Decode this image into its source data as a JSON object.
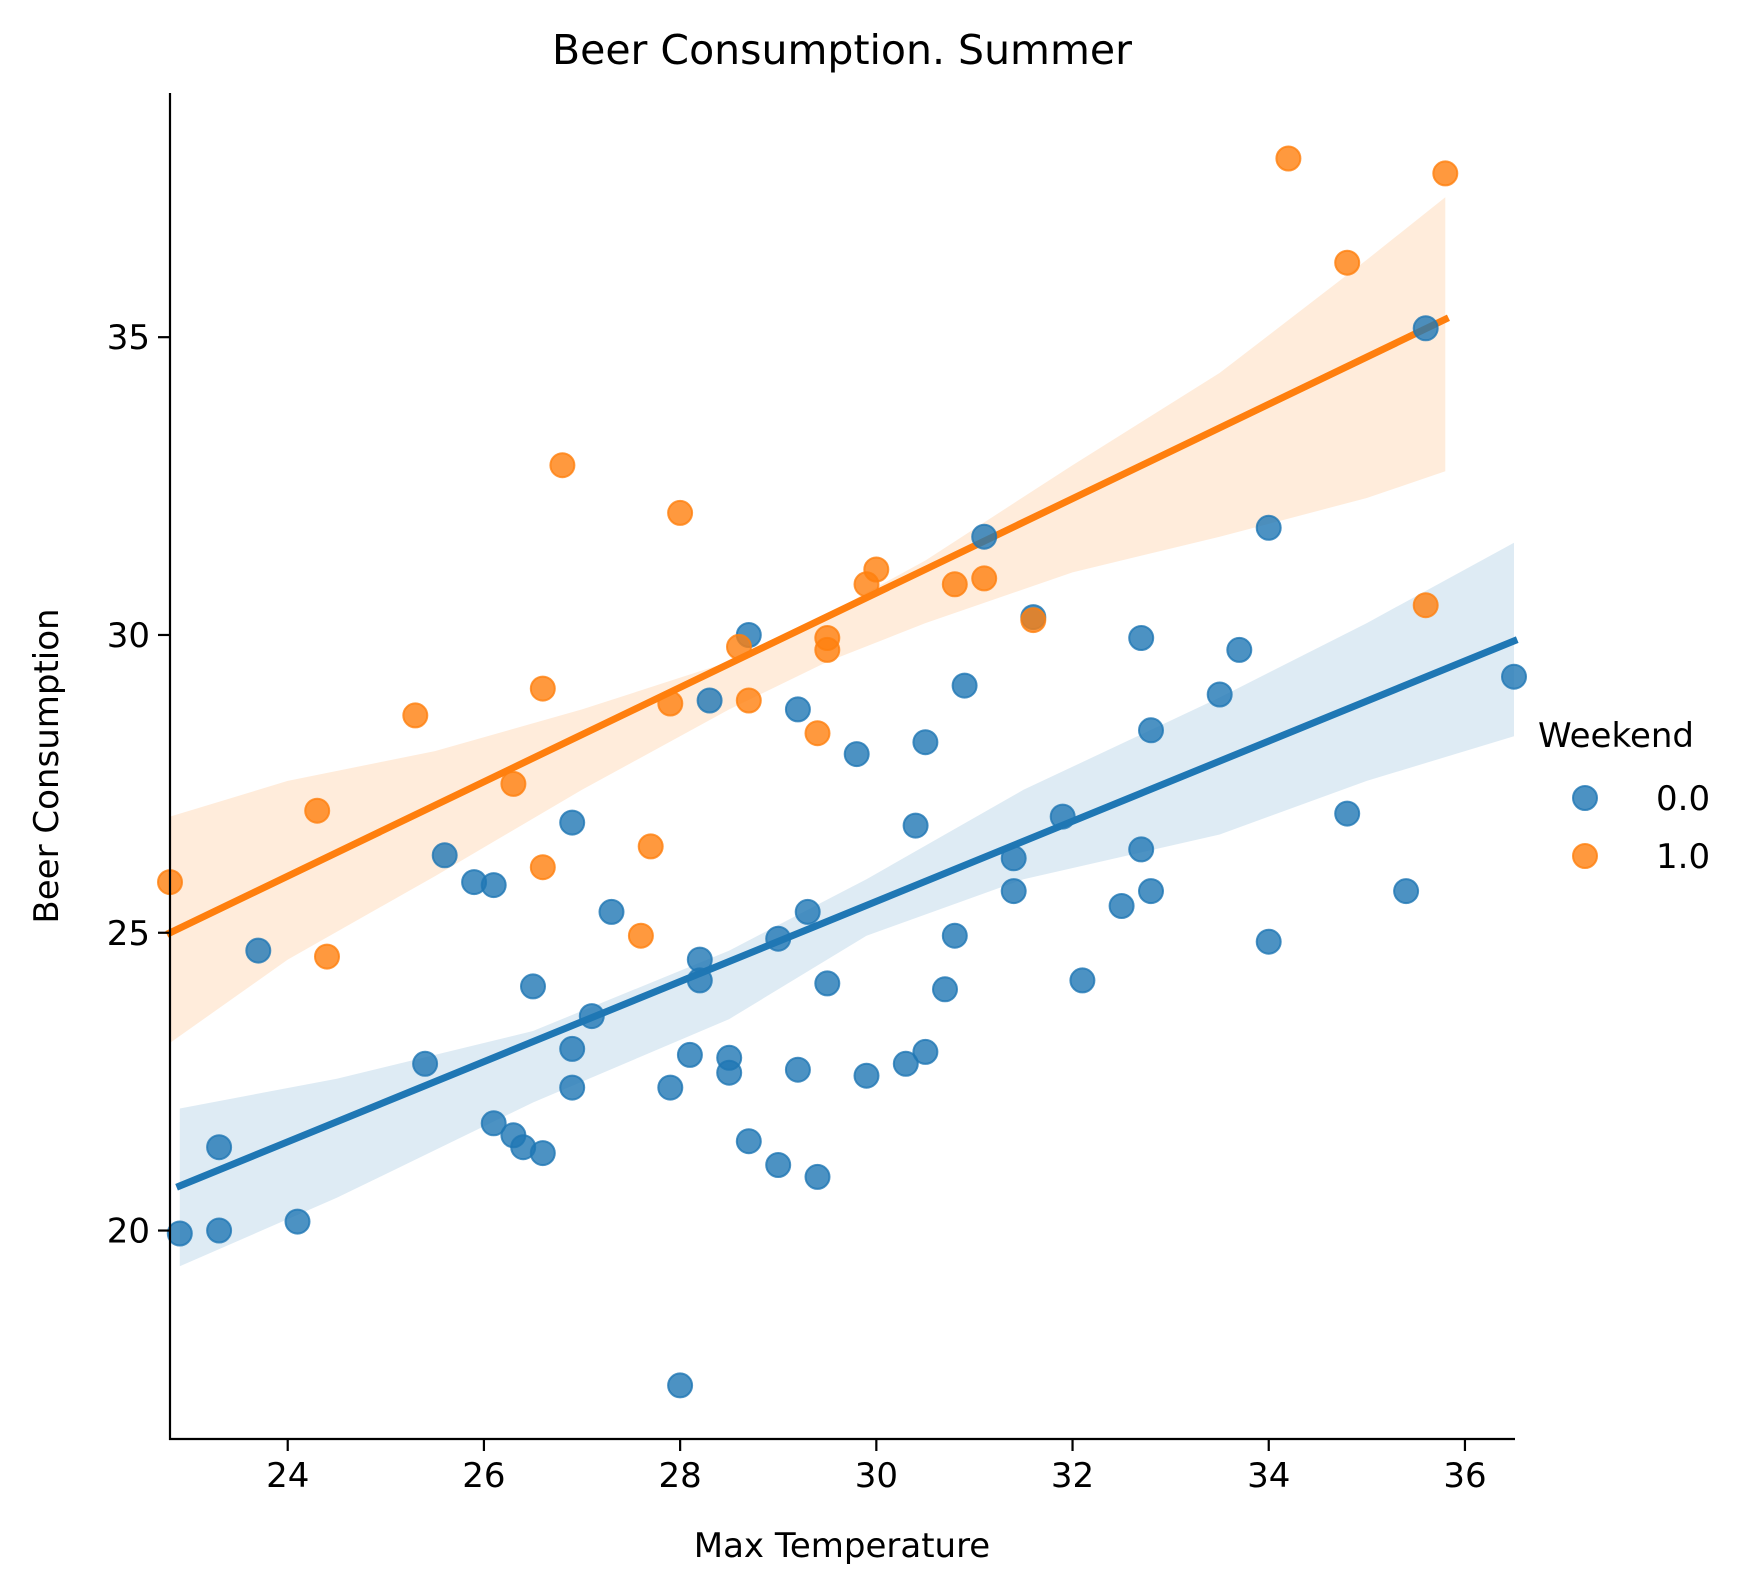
{
  "chart_data": {
    "type": "scatter",
    "title": "Beer Consumption. Summer",
    "xlabel": "Max Temperature",
    "ylabel": "Beer Consumption",
    "xlim": [
      22.8,
      36.5
    ],
    "ylim": [
      16.5,
      39.1
    ],
    "xticks": [
      24,
      26,
      28,
      30,
      32,
      34,
      36
    ],
    "yticks": [
      20,
      25,
      30,
      35
    ],
    "grid": false,
    "legend": {
      "title": "Weekend",
      "placement": "center-right outside"
    },
    "series": [
      {
        "name": "0.0",
        "color": "#1f77b4",
        "points": [
          [
            22.9,
            19.95
          ],
          [
            23.3,
            20.0
          ],
          [
            23.3,
            21.4
          ],
          [
            23.7,
            24.7
          ],
          [
            24.1,
            20.15
          ],
          [
            25.4,
            22.8
          ],
          [
            25.6,
            26.3
          ],
          [
            25.9,
            25.85
          ],
          [
            26.1,
            25.8
          ],
          [
            26.1,
            21.8
          ],
          [
            26.3,
            21.6
          ],
          [
            26.4,
            21.4
          ],
          [
            26.5,
            24.1
          ],
          [
            26.6,
            21.3
          ],
          [
            26.9,
            26.85
          ],
          [
            26.9,
            23.05
          ],
          [
            26.9,
            22.4
          ],
          [
            27.1,
            23.6
          ],
          [
            27.3,
            25.35
          ],
          [
            27.9,
            22.4
          ],
          [
            28.0,
            17.4
          ],
          [
            28.1,
            22.95
          ],
          [
            28.2,
            24.55
          ],
          [
            28.2,
            24.2
          ],
          [
            28.3,
            28.9
          ],
          [
            28.5,
            22.9
          ],
          [
            28.5,
            22.65
          ],
          [
            28.7,
            30.0
          ],
          [
            28.7,
            21.5
          ],
          [
            29.0,
            24.9
          ],
          [
            29.0,
            21.1
          ],
          [
            29.2,
            28.75
          ],
          [
            29.2,
            22.7
          ],
          [
            29.3,
            25.35
          ],
          [
            29.4,
            20.9
          ],
          [
            29.5,
            24.15
          ],
          [
            29.8,
            28.0
          ],
          [
            29.9,
            22.6
          ],
          [
            30.3,
            22.8
          ],
          [
            30.4,
            26.8
          ],
          [
            30.5,
            28.2
          ],
          [
            30.5,
            23.0
          ],
          [
            30.7,
            24.05
          ],
          [
            30.8,
            24.95
          ],
          [
            30.9,
            29.15
          ],
          [
            31.1,
            31.65
          ],
          [
            31.4,
            26.25
          ],
          [
            31.4,
            25.7
          ],
          [
            31.6,
            30.3
          ],
          [
            31.9,
            26.95
          ],
          [
            32.1,
            24.2
          ],
          [
            32.5,
            25.45
          ],
          [
            32.7,
            29.95
          ],
          [
            32.7,
            26.4
          ],
          [
            32.8,
            28.4
          ],
          [
            32.8,
            25.7
          ],
          [
            33.5,
            29.0
          ],
          [
            33.7,
            29.75
          ],
          [
            34.0,
            31.8
          ],
          [
            34.0,
            24.85
          ],
          [
            34.8,
            27.0
          ],
          [
            35.4,
            25.7
          ],
          [
            35.6,
            35.15
          ],
          [
            36.5,
            29.3
          ]
        ],
        "fit": {
          "x": [
            22.9,
            36.5
          ],
          "y": [
            20.75,
            29.9
          ]
        },
        "ci_band": {
          "x": [
            22.9,
            24.5,
            26.5,
            28.5,
            29.9,
            31.5,
            33.5,
            35.0,
            36.5
          ],
          "upper": [
            22.05,
            22.55,
            23.35,
            24.7,
            25.9,
            27.4,
            28.95,
            30.2,
            31.55
          ],
          "lower": [
            19.4,
            20.55,
            22.15,
            23.55,
            24.95,
            25.9,
            26.65,
            27.55,
            28.3
          ]
        }
      },
      {
        "name": "1.0",
        "color": "#ff7f0e",
        "points": [
          [
            22.8,
            25.85
          ],
          [
            24.3,
            27.05
          ],
          [
            24.4,
            24.6
          ],
          [
            25.3,
            28.65
          ],
          [
            26.3,
            27.5
          ],
          [
            26.6,
            29.1
          ],
          [
            26.6,
            26.1
          ],
          [
            26.8,
            32.85
          ],
          [
            27.6,
            24.95
          ],
          [
            27.7,
            26.45
          ],
          [
            27.9,
            28.85
          ],
          [
            28.0,
            32.05
          ],
          [
            28.6,
            29.8
          ],
          [
            28.7,
            28.9
          ],
          [
            29.4,
            28.35
          ],
          [
            29.5,
            29.95
          ],
          [
            29.5,
            29.75
          ],
          [
            29.9,
            30.85
          ],
          [
            30.0,
            31.1
          ],
          [
            30.8,
            30.85
          ],
          [
            31.1,
            30.95
          ],
          [
            31.6,
            30.25
          ],
          [
            34.2,
            38.0
          ],
          [
            34.8,
            36.25
          ],
          [
            35.6,
            30.5
          ],
          [
            35.8,
            37.75
          ]
        ],
        "fit": {
          "x": [
            22.8,
            35.8
          ],
          "y": [
            25.0,
            35.3
          ]
        },
        "ci_band": {
          "x": [
            22.8,
            24.0,
            25.5,
            27.0,
            28.5,
            29.5,
            30.5,
            32.0,
            33.5,
            35.0,
            35.8
          ],
          "upper": [
            26.95,
            27.55,
            28.05,
            28.75,
            29.55,
            30.35,
            31.25,
            32.85,
            34.4,
            36.3,
            37.35
          ],
          "lower": [
            23.15,
            24.55,
            25.95,
            27.4,
            28.75,
            29.55,
            30.2,
            31.05,
            31.65,
            32.3,
            32.75
          ]
        }
      }
    ]
  }
}
